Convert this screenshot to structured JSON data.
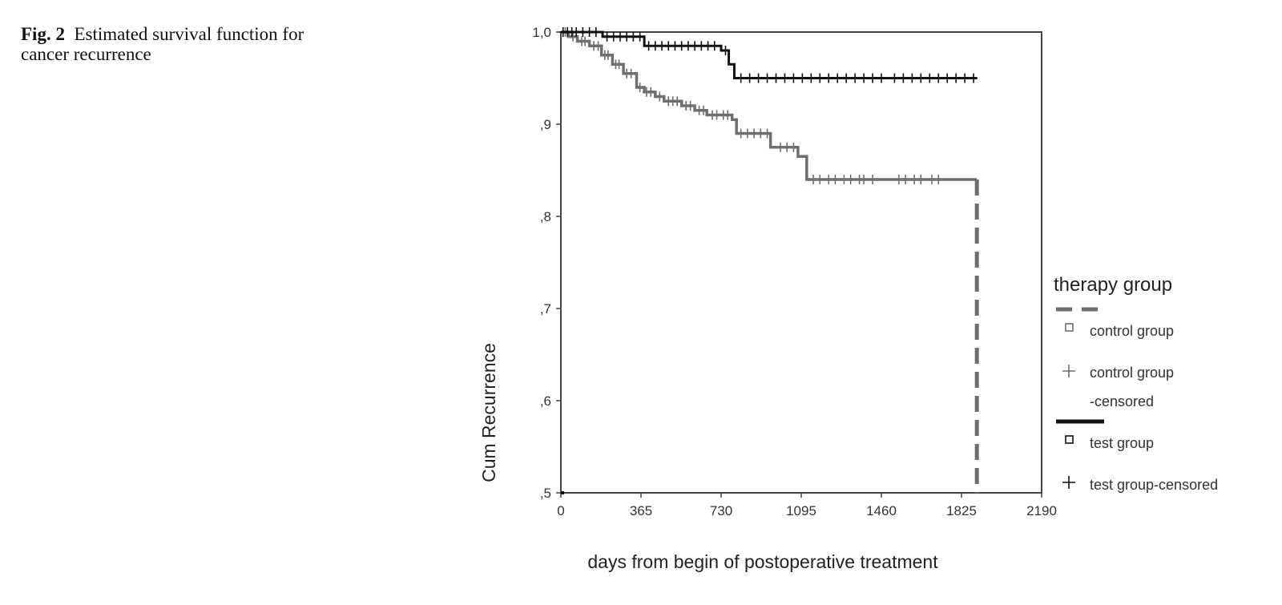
{
  "caption": {
    "label": "Fig. 2",
    "text": "Estimated survival function for cancer recurrence"
  },
  "chart_data": {
    "type": "line",
    "subtype": "kaplan-meier step",
    "xlabel": "days from begin of postoperative treatment",
    "ylabel": "Cum Recurrence",
    "xlim": [
      0,
      2190
    ],
    "ylim": [
      0.5,
      1.0
    ],
    "xticks": [
      0,
      365,
      730,
      1095,
      1460,
      1825,
      2190
    ],
    "xtick_labels": [
      "0",
      "365",
      "730",
      "1095",
      "1460",
      "1825",
      "2190"
    ],
    "yticks": [
      0.5,
      0.6,
      0.7,
      0.8,
      0.9,
      1.0
    ],
    "ytick_labels": [
      ",5",
      ",6",
      ",7",
      ",8",
      ",9",
      "1,0"
    ],
    "legend": {
      "title": "therapy group",
      "placement": "right",
      "entries": [
        {
          "label": "control group",
          "marker": "square"
        },
        {
          "label": "control group",
          "label_line2": "-censored",
          "marker": "plus"
        },
        {
          "label": "test group",
          "marker": "square"
        },
        {
          "label": "test group-censored",
          "marker": "plus"
        }
      ]
    },
    "series": [
      {
        "group": "control",
        "color": "#6e6e6e",
        "style": "dashed-legend",
        "steps": [
          [
            0,
            1.0
          ],
          [
            35,
            0.995
          ],
          [
            75,
            0.99
          ],
          [
            130,
            0.985
          ],
          [
            185,
            0.975
          ],
          [
            235,
            0.965
          ],
          [
            285,
            0.955
          ],
          [
            345,
            0.94
          ],
          [
            380,
            0.935
          ],
          [
            430,
            0.93
          ],
          [
            470,
            0.925
          ],
          [
            550,
            0.92
          ],
          [
            610,
            0.915
          ],
          [
            665,
            0.91
          ],
          [
            780,
            0.905
          ],
          [
            800,
            0.89
          ],
          [
            955,
            0.875
          ],
          [
            1080,
            0.865
          ],
          [
            1120,
            0.84
          ],
          [
            1895,
            0.5
          ]
        ],
        "censored": [
          20,
          55,
          95,
          110,
          150,
          170,
          200,
          215,
          250,
          265,
          300,
          320,
          360,
          390,
          410,
          450,
          490,
          510,
          530,
          570,
          590,
          630,
          650,
          690,
          710,
          740,
          760,
          820,
          850,
          880,
          910,
          940,
          1000,
          1030,
          1060,
          1150,
          1180,
          1220,
          1250,
          1290,
          1320,
          1360,
          1380,
          1420,
          1540,
          1570,
          1610,
          1640,
          1690,
          1720
        ]
      },
      {
        "group": "test",
        "color": "#111111",
        "style": "solid",
        "steps": [
          [
            0,
            1.0
          ],
          [
            190,
            0.995
          ],
          [
            380,
            0.985
          ],
          [
            730,
            0.98
          ],
          [
            765,
            0.965
          ],
          [
            790,
            0.95
          ],
          [
            1895,
            0.95
          ]
        ],
        "censored": [
          10,
          30,
          50,
          70,
          100,
          130,
          160,
          210,
          240,
          270,
          300,
          330,
          360,
          400,
          430,
          460,
          490,
          520,
          550,
          580,
          610,
          640,
          670,
          700,
          750,
          820,
          860,
          900,
          940,
          980,
          1020,
          1060,
          1100,
          1140,
          1180,
          1220,
          1260,
          1300,
          1340,
          1380,
          1420,
          1460,
          1520,
          1560,
          1600,
          1640,
          1680,
          1720,
          1760,
          1800,
          1840,
          1880
        ]
      }
    ]
  }
}
